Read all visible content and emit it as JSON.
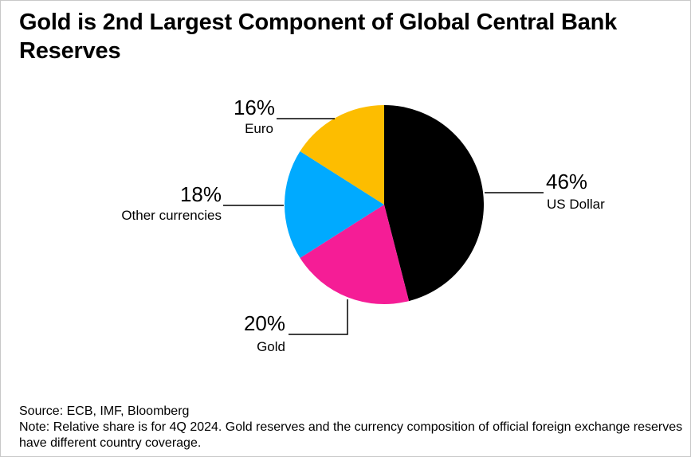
{
  "title": "Gold is 2nd Largest Component of Global Central Bank Reserves",
  "source": "Source: ECB, IMF, Bloomberg",
  "note": "Note: Relative share is for 4Q 2024. Gold reserves and the currency composition of official foreign exchange reserves have different country coverage.",
  "chart_data": {
    "type": "pie",
    "title": "Gold is 2nd Largest Component of Global Central Bank Reserves",
    "slices": [
      {
        "name": "US Dollar",
        "value": 46,
        "label": "46%",
        "color": "#000000"
      },
      {
        "name": "Gold",
        "value": 20,
        "label": "20%",
        "color": "#f51d96"
      },
      {
        "name": "Other currencies",
        "value": 18,
        "label": "18%",
        "color": "#00aaff"
      },
      {
        "name": "Euro",
        "value": 16,
        "label": "16%",
        "color": "#fdbd00"
      }
    ]
  }
}
